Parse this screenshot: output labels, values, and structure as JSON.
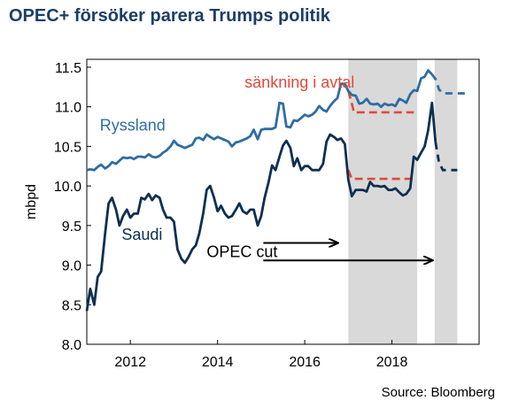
{
  "chart_data": {
    "type": "line",
    "title": "OPEC+ försöker parera Trumps politik",
    "source": "Source: Bloomberg",
    "ylabel": "mbpd",
    "xlabel": "",
    "xlim": [
      2011.0,
      2020.0
    ],
    "ylim": [
      8.0,
      11.6
    ],
    "x_ticks": [
      2012,
      2014,
      2016,
      2018
    ],
    "y_ticks": [
      8.0,
      8.5,
      9.0,
      9.5,
      10.0,
      10.5,
      11.0,
      11.5
    ],
    "y_tick_labels": [
      "8.0",
      "8.5",
      "9.0",
      "9.5",
      "10.0",
      "10.5",
      "11.0",
      "11.5"
    ],
    "grid": false,
    "colors": {
      "ryssland": "#2e6da4",
      "saudi": "#0e2f52",
      "target": "#e04a3a",
      "shade": "#d9d9d9",
      "arrow": "#000000"
    },
    "shaded_periods": [
      {
        "from": 2017.0,
        "to": 2018.58
      },
      {
        "from": 2018.98,
        "to": 2019.5
      }
    ],
    "series": [
      {
        "name": "Ryssland",
        "color": "#2e6da4",
        "x": [
          2011.0,
          2011.08,
          2011.17,
          2011.25,
          2011.33,
          2011.42,
          2011.5,
          2011.58,
          2011.67,
          2011.75,
          2011.83,
          2011.92,
          2012.0,
          2012.08,
          2012.17,
          2012.25,
          2012.33,
          2012.42,
          2012.5,
          2012.58,
          2012.67,
          2012.75,
          2012.83,
          2012.92,
          2013.0,
          2013.08,
          2013.17,
          2013.25,
          2013.33,
          2013.42,
          2013.5,
          2013.58,
          2013.67,
          2013.75,
          2013.83,
          2013.92,
          2014.0,
          2014.08,
          2014.17,
          2014.25,
          2014.33,
          2014.42,
          2014.5,
          2014.58,
          2014.67,
          2014.75,
          2014.83,
          2014.92,
          2015.0,
          2015.08,
          2015.17,
          2015.25,
          2015.33,
          2015.42,
          2015.5,
          2015.58,
          2015.67,
          2015.75,
          2015.83,
          2015.92,
          2016.0,
          2016.08,
          2016.17,
          2016.25,
          2016.33,
          2016.42,
          2016.5,
          2016.58,
          2016.67,
          2016.75,
          2016.83,
          2016.92,
          2017.0,
          2017.08,
          2017.17,
          2017.25,
          2017.33,
          2017.42,
          2017.5,
          2017.58,
          2017.67,
          2017.75,
          2017.83,
          2017.92,
          2018.0,
          2018.08,
          2018.17,
          2018.25,
          2018.33,
          2018.42,
          2018.5,
          2018.58,
          2018.67,
          2018.75,
          2018.83,
          2018.92
        ],
        "values": [
          10.2,
          10.21,
          10.2,
          10.24,
          10.27,
          10.22,
          10.25,
          10.3,
          10.28,
          10.32,
          10.36,
          10.35,
          10.36,
          10.34,
          10.37,
          10.37,
          10.36,
          10.4,
          10.37,
          10.36,
          10.38,
          10.42,
          10.45,
          10.5,
          10.57,
          10.52,
          10.5,
          10.48,
          10.5,
          10.52,
          10.6,
          10.61,
          10.58,
          10.65,
          10.62,
          10.59,
          10.62,
          10.6,
          10.58,
          10.56,
          10.5,
          10.55,
          10.56,
          10.58,
          10.6,
          10.63,
          10.71,
          10.59,
          10.71,
          10.72,
          10.72,
          10.72,
          10.74,
          11.05,
          11.04,
          10.75,
          10.74,
          10.83,
          10.82,
          10.86,
          10.9,
          10.88,
          10.9,
          10.94,
          11.01,
          10.96,
          10.94,
          11.01,
          11.07,
          11.11,
          11.29,
          11.29,
          11.2,
          11.15,
          11.14,
          11.04,
          11.05,
          11.1,
          11.04,
          11.03,
          11.04,
          11.0,
          11.04,
          11.02,
          11.03,
          11.01,
          11.1,
          11.08,
          11.05,
          11.16,
          11.21,
          11.2,
          11.36,
          11.38,
          11.46,
          11.41
        ]
      },
      {
        "name": "Saudi",
        "color": "#0e2f52",
        "x": [
          2011.0,
          2011.08,
          2011.17,
          2011.25,
          2011.33,
          2011.42,
          2011.5,
          2011.58,
          2011.67,
          2011.75,
          2011.83,
          2011.92,
          2012.0,
          2012.08,
          2012.17,
          2012.25,
          2012.33,
          2012.42,
          2012.5,
          2012.58,
          2012.67,
          2012.75,
          2012.83,
          2012.92,
          2013.0,
          2013.08,
          2013.17,
          2013.25,
          2013.33,
          2013.42,
          2013.5,
          2013.58,
          2013.67,
          2013.75,
          2013.83,
          2013.92,
          2014.0,
          2014.08,
          2014.17,
          2014.25,
          2014.33,
          2014.42,
          2014.5,
          2014.58,
          2014.67,
          2014.75,
          2014.83,
          2014.92,
          2015.0,
          2015.08,
          2015.17,
          2015.25,
          2015.33,
          2015.42,
          2015.5,
          2015.58,
          2015.67,
          2015.75,
          2015.83,
          2015.92,
          2016.0,
          2016.08,
          2016.17,
          2016.25,
          2016.33,
          2016.42,
          2016.5,
          2016.58,
          2016.67,
          2016.75,
          2016.83,
          2016.92,
          2017.0,
          2017.08,
          2017.17,
          2017.25,
          2017.33,
          2017.42,
          2017.5,
          2017.58,
          2017.67,
          2017.75,
          2017.83,
          2017.92,
          2018.0,
          2018.08,
          2018.17,
          2018.25,
          2018.33,
          2018.42,
          2018.5,
          2018.58,
          2018.67,
          2018.75,
          2018.83,
          2018.92,
          2019.0
        ],
        "values": [
          8.42,
          8.7,
          8.5,
          8.85,
          8.92,
          9.4,
          9.78,
          9.85,
          9.7,
          9.5,
          9.62,
          9.7,
          9.6,
          9.65,
          9.65,
          9.85,
          9.83,
          9.9,
          9.82,
          9.88,
          9.85,
          9.7,
          9.6,
          9.6,
          9.55,
          9.2,
          9.08,
          9.03,
          9.1,
          9.2,
          9.25,
          9.4,
          9.65,
          9.95,
          10.0,
          9.85,
          9.68,
          9.75,
          9.65,
          9.6,
          9.62,
          9.7,
          9.78,
          9.68,
          9.65,
          9.7,
          9.7,
          9.5,
          9.62,
          9.85,
          10.05,
          10.26,
          10.2,
          10.37,
          10.51,
          10.57,
          10.48,
          10.25,
          10.35,
          10.2,
          10.25,
          10.25,
          10.2,
          10.2,
          10.2,
          10.28,
          10.56,
          10.65,
          10.62,
          10.58,
          10.6,
          10.53,
          10.08,
          9.87,
          9.95,
          9.95,
          9.95,
          9.93,
          10.05,
          10.0,
          10.0,
          9.99,
          10.0,
          9.95,
          9.95,
          9.97,
          9.92,
          9.88,
          9.9,
          9.97,
          10.37,
          10.33,
          10.42,
          10.5,
          10.7,
          11.05,
          10.55
        ]
      }
    ],
    "forecast": [
      {
        "series": "Ryssland",
        "x": [
          2018.92,
          2019.0,
          2019.08,
          2019.17,
          2019.5,
          2019.75
        ],
        "values": [
          11.41,
          11.35,
          11.22,
          11.17,
          11.17,
          11.17
        ]
      },
      {
        "series": "Saudi",
        "x": [
          2019.0,
          2019.08,
          2019.17,
          2019.5
        ],
        "values": [
          10.55,
          10.3,
          10.2,
          10.2
        ]
      }
    ],
    "targets": [
      {
        "x": [
          2017.0,
          2017.05,
          2017.08,
          2017.13,
          2018.5
        ],
        "values": [
          11.2,
          11.1,
          11.04,
          10.93,
          10.93
        ]
      },
      {
        "x": [
          2017.0,
          2017.08,
          2018.5
        ],
        "values": [
          10.2,
          10.09,
          10.09
        ]
      }
    ],
    "arrows": [
      {
        "x0": 2015.05,
        "x1": 2016.75,
        "y": 9.28
      },
      {
        "x0": 2015.05,
        "x1": 2018.92,
        "y": 9.06
      }
    ],
    "annotations": [
      {
        "key": "ryssland",
        "text": "Ryssland",
        "x": 2011.3,
        "y": 10.7
      },
      {
        "key": "saudi",
        "text": "Saudi",
        "x": 2011.8,
        "y": 9.32
      },
      {
        "key": "target",
        "text": "sänkning i avtal",
        "x": 2014.62,
        "y": 11.24
      },
      {
        "key": "opec",
        "text": "OPEC cut",
        "x": 2013.75,
        "y": 9.1
      }
    ]
  }
}
